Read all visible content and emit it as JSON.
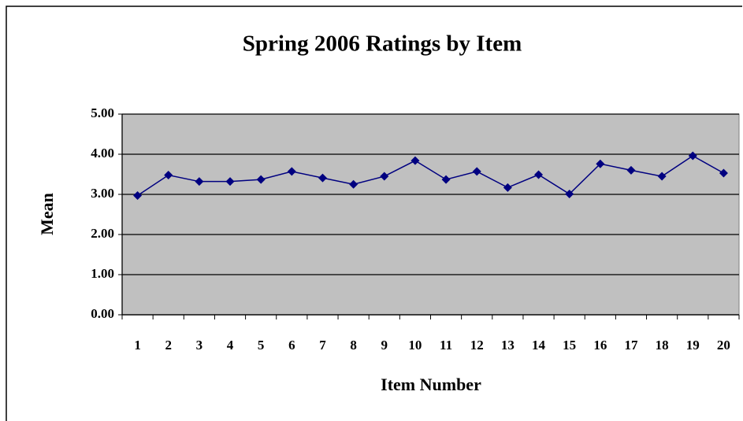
{
  "chart_data": {
    "type": "line",
    "title": "Spring 2006 Ratings by Item",
    "x_label": "Item Number",
    "y_label": "Mean",
    "categories": [
      "1",
      "2",
      "3",
      "4",
      "5",
      "6",
      "7",
      "8",
      "9",
      "10",
      "11",
      "12",
      "13",
      "14",
      "15",
      "16",
      "17",
      "18",
      "19",
      "20"
    ],
    "series": [
      {
        "name": "Mean",
        "color": "#000080",
        "values": [
          2.97,
          3.48,
          3.32,
          3.32,
          3.37,
          3.57,
          3.41,
          3.25,
          3.45,
          3.84,
          3.37,
          3.57,
          3.17,
          3.49,
          3.01,
          3.76,
          3.6,
          3.45,
          3.96,
          3.53
        ]
      }
    ],
    "ylim": [
      0,
      5
    ],
    "yticks": [
      {
        "value": 0,
        "label": "0.00"
      },
      {
        "value": 1,
        "label": "1.00"
      },
      {
        "value": 2,
        "label": "2.00"
      },
      {
        "value": 3,
        "label": "3.00"
      },
      {
        "value": 4,
        "label": "4.00"
      },
      {
        "value": 5,
        "label": "5.00"
      }
    ],
    "grid": true,
    "plot_background": "#c0c0c0"
  }
}
